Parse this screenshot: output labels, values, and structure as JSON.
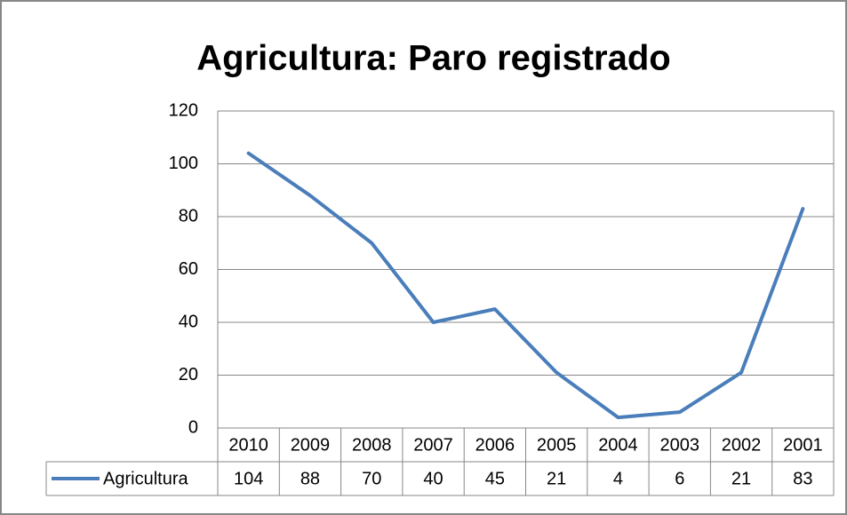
{
  "chart_data": {
    "type": "line",
    "title": "Agricultura: Paro registrado",
    "categories": [
      "2010",
      "2009",
      "2008",
      "2007",
      "2006",
      "2005",
      "2004",
      "2003",
      "2002",
      "2001"
    ],
    "series": [
      {
        "name": "Agricultura",
        "color": "#4a7ebb",
        "values": [
          104,
          88,
          70,
          40,
          45,
          21,
          4,
          6,
          21,
          83
        ]
      }
    ],
    "ylim": [
      0,
      120
    ],
    "yticks": [
      0,
      20,
      40,
      60,
      80,
      100,
      120
    ],
    "grid": true,
    "legend": "table"
  }
}
